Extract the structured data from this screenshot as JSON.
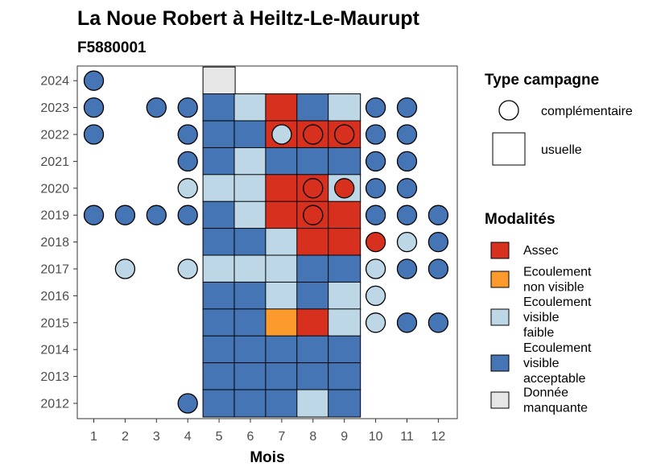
{
  "chart_data": {
    "type": "heatmap",
    "title": "La Noue Robert à Heiltz-Le-Maurupt",
    "subtitle": "F5880001",
    "xlabel": "Mois",
    "ylabel": "",
    "x_ticks": [
      1,
      2,
      3,
      4,
      5,
      6,
      7,
      8,
      9,
      10,
      11,
      12
    ],
    "y_ticks": [
      2012,
      2013,
      2014,
      2015,
      2016,
      2017,
      2018,
      2019,
      2020,
      2021,
      2022,
      2023,
      2024
    ],
    "legend_type": {
      "title": "Type campagne",
      "entries": [
        {
          "key": "complementaire",
          "label": "complémentaire",
          "shape": "circle"
        },
        {
          "key": "usuelle",
          "label": "usuelle",
          "shape": "square"
        }
      ]
    },
    "legend_modalites": {
      "title": "Modalités",
      "entries": [
        {
          "key": "assec",
          "lines": [
            "Assec"
          ],
          "color": "#d7301f"
        },
        {
          "key": "nv",
          "lines": [
            "Ecoulement",
            "non visible"
          ],
          "color": "#fd9a2e"
        },
        {
          "key": "faible",
          "lines": [
            "Ecoulement",
            "visible",
            "faible"
          ],
          "color": "#bdd7e7"
        },
        {
          "key": "acceptable",
          "lines": [
            "Ecoulement",
            "visible",
            "acceptable"
          ],
          "color": "#4575b4"
        },
        {
          "key": "manquante",
          "lines": [
            "Donnée",
            "manquante"
          ],
          "color": "#e6e6e6"
        }
      ]
    },
    "usuelle": [
      {
        "year": 2024,
        "month": 5,
        "status": "manquante"
      },
      {
        "year": 2023,
        "month": 5,
        "status": "acceptable"
      },
      {
        "year": 2023,
        "month": 6,
        "status": "faible"
      },
      {
        "year": 2023,
        "month": 7,
        "status": "assec"
      },
      {
        "year": 2023,
        "month": 8,
        "status": "acceptable"
      },
      {
        "year": 2023,
        "month": 9,
        "status": "faible"
      },
      {
        "year": 2022,
        "month": 5,
        "status": "acceptable"
      },
      {
        "year": 2022,
        "month": 6,
        "status": "acceptable"
      },
      {
        "year": 2022,
        "month": 7,
        "status": "assec"
      },
      {
        "year": 2022,
        "month": 8,
        "status": "assec"
      },
      {
        "year": 2022,
        "month": 9,
        "status": "assec"
      },
      {
        "year": 2021,
        "month": 5,
        "status": "acceptable"
      },
      {
        "year": 2021,
        "month": 6,
        "status": "faible"
      },
      {
        "year": 2021,
        "month": 7,
        "status": "acceptable"
      },
      {
        "year": 2021,
        "month": 8,
        "status": "acceptable"
      },
      {
        "year": 2021,
        "month": 9,
        "status": "acceptable"
      },
      {
        "year": 2020,
        "month": 5,
        "status": "faible"
      },
      {
        "year": 2020,
        "month": 6,
        "status": "faible"
      },
      {
        "year": 2020,
        "month": 7,
        "status": "assec"
      },
      {
        "year": 2020,
        "month": 8,
        "status": "assec"
      },
      {
        "year": 2020,
        "month": 9,
        "status": "faible"
      },
      {
        "year": 2019,
        "month": 5,
        "status": "acceptable"
      },
      {
        "year": 2019,
        "month": 6,
        "status": "faible"
      },
      {
        "year": 2019,
        "month": 7,
        "status": "assec"
      },
      {
        "year": 2019,
        "month": 8,
        "status": "assec"
      },
      {
        "year": 2019,
        "month": 9,
        "status": "assec"
      },
      {
        "year": 2018,
        "month": 5,
        "status": "acceptable"
      },
      {
        "year": 2018,
        "month": 6,
        "status": "acceptable"
      },
      {
        "year": 2018,
        "month": 7,
        "status": "faible"
      },
      {
        "year": 2018,
        "month": 8,
        "status": "assec"
      },
      {
        "year": 2018,
        "month": 9,
        "status": "assec"
      },
      {
        "year": 2017,
        "month": 5,
        "status": "faible"
      },
      {
        "year": 2017,
        "month": 6,
        "status": "faible"
      },
      {
        "year": 2017,
        "month": 7,
        "status": "faible"
      },
      {
        "year": 2017,
        "month": 8,
        "status": "acceptable"
      },
      {
        "year": 2017,
        "month": 9,
        "status": "acceptable"
      },
      {
        "year": 2016,
        "month": 5,
        "status": "acceptable"
      },
      {
        "year": 2016,
        "month": 6,
        "status": "acceptable"
      },
      {
        "year": 2016,
        "month": 7,
        "status": "faible"
      },
      {
        "year": 2016,
        "month": 8,
        "status": "acceptable"
      },
      {
        "year": 2016,
        "month": 9,
        "status": "faible"
      },
      {
        "year": 2015,
        "month": 5,
        "status": "acceptable"
      },
      {
        "year": 2015,
        "month": 6,
        "status": "acceptable"
      },
      {
        "year": 2015,
        "month": 7,
        "status": "nv"
      },
      {
        "year": 2015,
        "month": 8,
        "status": "assec"
      },
      {
        "year": 2015,
        "month": 9,
        "status": "faible"
      },
      {
        "year": 2014,
        "month": 5,
        "status": "acceptable"
      },
      {
        "year": 2014,
        "month": 6,
        "status": "acceptable"
      },
      {
        "year": 2014,
        "month": 7,
        "status": "acceptable"
      },
      {
        "year": 2014,
        "month": 8,
        "status": "acceptable"
      },
      {
        "year": 2014,
        "month": 9,
        "status": "acceptable"
      },
      {
        "year": 2013,
        "month": 5,
        "status": "acceptable"
      },
      {
        "year": 2013,
        "month": 6,
        "status": "acceptable"
      },
      {
        "year": 2013,
        "month": 7,
        "status": "acceptable"
      },
      {
        "year": 2013,
        "month": 8,
        "status": "acceptable"
      },
      {
        "year": 2013,
        "month": 9,
        "status": "acceptable"
      },
      {
        "year": 2012,
        "month": 5,
        "status": "acceptable"
      },
      {
        "year": 2012,
        "month": 6,
        "status": "acceptable"
      },
      {
        "year": 2012,
        "month": 7,
        "status": "acceptable"
      },
      {
        "year": 2012,
        "month": 8,
        "status": "faible"
      },
      {
        "year": 2012,
        "month": 9,
        "status": "acceptable"
      }
    ],
    "complementaire": [
      {
        "year": 2024,
        "month": 1,
        "status": "acceptable"
      },
      {
        "year": 2023,
        "month": 1,
        "status": "acceptable"
      },
      {
        "year": 2023,
        "month": 3,
        "status": "acceptable"
      },
      {
        "year": 2023,
        "month": 4,
        "status": "acceptable"
      },
      {
        "year": 2023,
        "month": 10,
        "status": "acceptable"
      },
      {
        "year": 2023,
        "month": 11,
        "status": "acceptable"
      },
      {
        "year": 2022,
        "month": 1,
        "status": "acceptable"
      },
      {
        "year": 2022,
        "month": 4,
        "status": "acceptable"
      },
      {
        "year": 2022,
        "month": 7,
        "status": "faible"
      },
      {
        "year": 2022,
        "month": 8,
        "status": "assec"
      },
      {
        "year": 2022,
        "month": 9,
        "status": "assec"
      },
      {
        "year": 2022,
        "month": 10,
        "status": "acceptable"
      },
      {
        "year": 2022,
        "month": 11,
        "status": "acceptable"
      },
      {
        "year": 2021,
        "month": 4,
        "status": "acceptable"
      },
      {
        "year": 2021,
        "month": 10,
        "status": "acceptable"
      },
      {
        "year": 2021,
        "month": 11,
        "status": "acceptable"
      },
      {
        "year": 2020,
        "month": 4,
        "status": "faible"
      },
      {
        "year": 2020,
        "month": 8,
        "status": "assec"
      },
      {
        "year": 2020,
        "month": 9,
        "status": "assec"
      },
      {
        "year": 2020,
        "month": 10,
        "status": "acceptable"
      },
      {
        "year": 2020,
        "month": 11,
        "status": "acceptable"
      },
      {
        "year": 2019,
        "month": 1,
        "status": "acceptable"
      },
      {
        "year": 2019,
        "month": 2,
        "status": "acceptable"
      },
      {
        "year": 2019,
        "month": 3,
        "status": "acceptable"
      },
      {
        "year": 2019,
        "month": 4,
        "status": "acceptable"
      },
      {
        "year": 2019,
        "month": 8,
        "status": "assec"
      },
      {
        "year": 2019,
        "month": 10,
        "status": "acceptable"
      },
      {
        "year": 2019,
        "month": 11,
        "status": "acceptable"
      },
      {
        "year": 2019,
        "month": 12,
        "status": "acceptable"
      },
      {
        "year": 2018,
        "month": 10,
        "status": "assec"
      },
      {
        "year": 2018,
        "month": 11,
        "status": "faible"
      },
      {
        "year": 2018,
        "month": 12,
        "status": "acceptable"
      },
      {
        "year": 2017,
        "month": 2,
        "status": "faible"
      },
      {
        "year": 2017,
        "month": 4,
        "status": "faible"
      },
      {
        "year": 2017,
        "month": 10,
        "status": "faible"
      },
      {
        "year": 2017,
        "month": 11,
        "status": "acceptable"
      },
      {
        "year": 2017,
        "month": 12,
        "status": "acceptable"
      },
      {
        "year": 2016,
        "month": 10,
        "status": "faible"
      },
      {
        "year": 2015,
        "month": 10,
        "status": "faible"
      },
      {
        "year": 2015,
        "month": 11,
        "status": "acceptable"
      },
      {
        "year": 2015,
        "month": 12,
        "status": "acceptable"
      },
      {
        "year": 2012,
        "month": 4,
        "status": "acceptable"
      }
    ]
  }
}
